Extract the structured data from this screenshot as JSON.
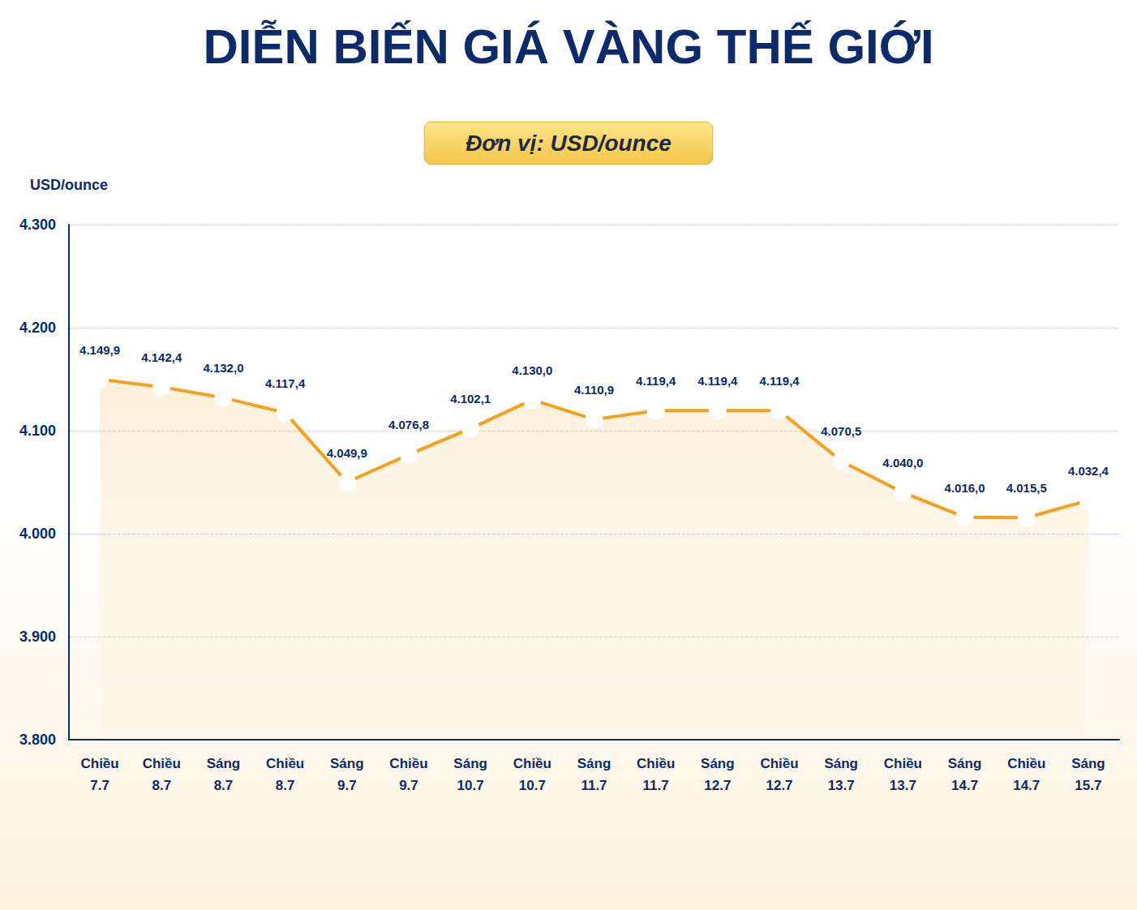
{
  "chart_data": {
    "type": "line",
    "title": "DIỄN BIẾN GIÁ VÀNG THẾ GIỚI",
    "subtitle": "Đơn vị: USD/ounce",
    "y_label": "USD/ounce",
    "categories": [
      "Chiều 7.7",
      "Chiều 8.7",
      "Sáng 8.7",
      "Chiều 8.7",
      "Sáng 9.7",
      "Chiều 9.7",
      "Sáng 10.7",
      "Chiều 10.7",
      "Sáng 11.7",
      "Chiều 11.7",
      "Sáng 12.7",
      "Chiều 12.7",
      "Sáng 13.7",
      "Chiều 13.7",
      "Sáng 14.7",
      "Chiều 14.7",
      "Sáng 15.7"
    ],
    "values": [
      4149.9,
      4142.4,
      4132.0,
      4117.4,
      4049.9,
      4076.8,
      4102.1,
      4130.0,
      4110.9,
      4119.4,
      4119.4,
      4119.4,
      4070.5,
      4040.0,
      4016.0,
      4015.5,
      4032.4
    ],
    "value_labels": [
      "4.149,9",
      "4.142,4",
      "4.132,0",
      "4.117,4",
      "4.049,9",
      "4.076,8",
      "4.102,1",
      "4.130,0",
      "4.110,9",
      "4.119,4",
      "4.119,4",
      "4.119,4",
      "4.070,5",
      "4.040,0",
      "4.016,0",
      "4.015,5",
      "4.032,4"
    ],
    "color": "#f5a11c",
    "marker": "hollow circle",
    "ylim": [
      3800,
      4300
    ],
    "yticks": [
      {
        "value": 3800,
        "label": "3.800"
      },
      {
        "value": 3900,
        "label": "3.900"
      },
      {
        "value": 4000,
        "label": "4.000"
      },
      {
        "value": 4100,
        "label": "4.100"
      },
      {
        "value": 4200,
        "label": "4.200"
      },
      {
        "value": 4300,
        "label": "4.300"
      }
    ],
    "grid": true,
    "data_labels": true
  }
}
